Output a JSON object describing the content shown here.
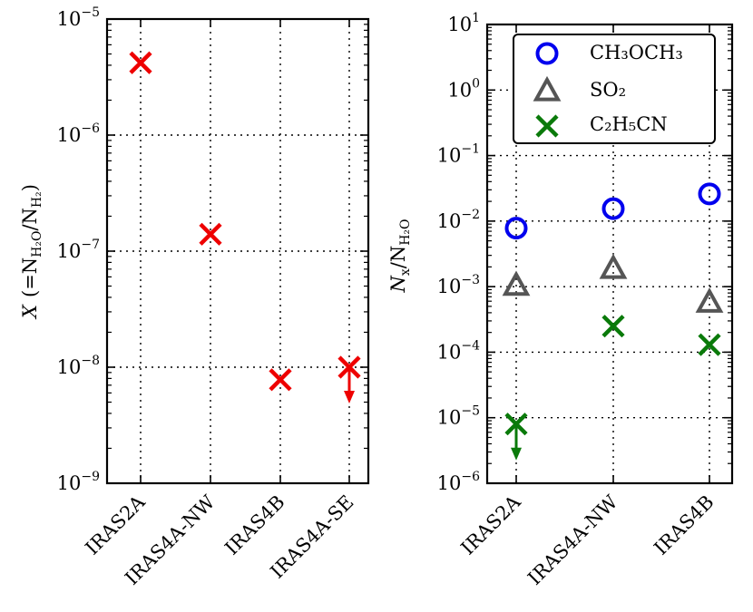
{
  "chart_data": [
    {
      "type": "scatter",
      "panel": "left",
      "yscale": "log",
      "ylim": [
        1e-09,
        1e-05
      ],
      "ylabel": {
        "main": "X",
        "eq": "(=N",
        "sub1": "H₂O",
        "slash": "/N",
        "sub2": "H₂",
        "close": ")"
      },
      "y_ticks": [
        {
          "value": 1e-09,
          "base": "10",
          "exp": "−9"
        },
        {
          "value": 1e-08,
          "base": "10",
          "exp": "−8"
        },
        {
          "value": 1e-07,
          "base": "10",
          "exp": "−7"
        },
        {
          "value": 1e-06,
          "base": "10",
          "exp": "−6"
        },
        {
          "value": 1e-05,
          "base": "10",
          "exp": "−5"
        }
      ],
      "categories": [
        "IRAS2A",
        "IRAS4A-NW",
        "IRAS4B",
        "IRAS4A-SE"
      ],
      "series": [
        {
          "name": "X",
          "marker": "x",
          "color": "#ee0000",
          "values": [
            4.2e-06,
            1.4e-07,
            7.8e-09,
            1e-08
          ],
          "upper_limit": [
            false,
            false,
            false,
            true
          ]
        }
      ],
      "grid": true
    },
    {
      "type": "scatter",
      "panel": "right",
      "yscale": "log",
      "ylim": [
        1e-06,
        10
      ],
      "ylabel": {
        "main": "N",
        "sub_main": "x",
        "slash": "/N",
        "sub2": "H₂O"
      },
      "y_ticks": [
        {
          "value": 1e-06,
          "base": "10",
          "exp": "−6"
        },
        {
          "value": 1e-05,
          "base": "10",
          "exp": "−5"
        },
        {
          "value": 0.0001,
          "base": "10",
          "exp": "−4"
        },
        {
          "value": 0.001,
          "base": "10",
          "exp": "−3"
        },
        {
          "value": 0.01,
          "base": "10",
          "exp": "−2"
        },
        {
          "value": 0.1,
          "base": "10",
          "exp": "−1"
        },
        {
          "value": 1,
          "base": "10",
          "exp": "0"
        },
        {
          "value": 10,
          "base": "10",
          "exp": "1"
        }
      ],
      "categories": [
        "IRAS2A",
        "IRAS4A-NW",
        "IRAS4B"
      ],
      "series": [
        {
          "name": "CH₃OCH₃",
          "marker": "circle",
          "color": "#0000ee",
          "values": [
            0.0078,
            0.0155,
            0.026
          ],
          "upper_limit": [
            false,
            false,
            false
          ]
        },
        {
          "name": "SO₂",
          "marker": "triangle",
          "color": "#555555",
          "values": [
            0.00105,
            0.0019,
            0.00058
          ],
          "upper_limit": [
            false,
            false,
            false
          ]
        },
        {
          "name": "C₂H₅CN",
          "marker": "x",
          "color": "#0a7a0a",
          "values": [
            8e-06,
            0.00025,
            0.00013
          ],
          "upper_limit": [
            true,
            false,
            false
          ]
        }
      ],
      "legend": {
        "position": "top-right",
        "labels": [
          "CH₃OCH₃",
          "SO₂",
          "C₂H₅CN"
        ]
      },
      "grid": true
    }
  ]
}
